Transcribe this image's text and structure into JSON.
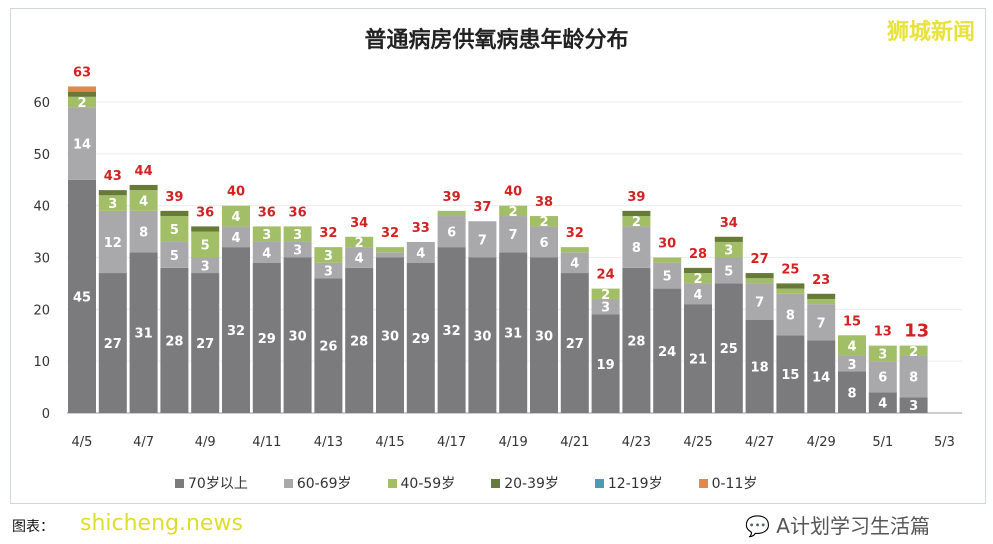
{
  "chart_data": {
    "type": "bar",
    "stacked": true,
    "title": "普通病房供氧病患年龄分布",
    "categories": [
      "4/5",
      "4/6",
      "4/7",
      "4/8",
      "4/9",
      "4/10",
      "4/11",
      "4/12",
      "4/13",
      "4/14",
      "4/15",
      "4/16",
      "4/17",
      "4/18",
      "4/19",
      "4/20",
      "4/21",
      "4/22",
      "4/23",
      "4/24",
      "4/25",
      "4/26",
      "4/27",
      "4/28",
      "4/29",
      "4/30",
      "5/1",
      "5/2"
    ],
    "x_tick_labels": [
      "4/5",
      "4/7",
      "4/9",
      "4/11",
      "4/13",
      "4/15",
      "4/17",
      "4/19",
      "4/21",
      "4/23",
      "4/25",
      "4/27",
      "4/29",
      "5/1",
      "5/3"
    ],
    "totals": [
      63,
      43,
      44,
      39,
      36,
      40,
      36,
      36,
      32,
      34,
      32,
      33,
      39,
      37,
      40,
      38,
      32,
      24,
      39,
      30,
      28,
      34,
      27,
      25,
      23,
      15,
      13,
      13
    ],
    "series": [
      {
        "name": "70岁以上",
        "color": "#7b7a7d",
        "values": [
          45,
          27,
          31,
          28,
          27,
          32,
          29,
          30,
          26,
          28,
          30,
          29,
          32,
          30,
          31,
          30,
          27,
          19,
          28,
          24,
          21,
          25,
          18,
          15,
          14,
          8,
          4,
          3
        ]
      },
      {
        "name": "60-69岁",
        "color": "#a9a9ac",
        "values": [
          14,
          12,
          8,
          5,
          3,
          4,
          4,
          3,
          3,
          4,
          1,
          4,
          6,
          7,
          7,
          6,
          4,
          3,
          8,
          5,
          4,
          5,
          7,
          8,
          7,
          3,
          6,
          8
        ]
      },
      {
        "name": "40-59岁",
        "color": "#a2bf68",
        "values": [
          2,
          3,
          4,
          5,
          5,
          4,
          3,
          3,
          3,
          2,
          1,
          0,
          1,
          0,
          2,
          2,
          1,
          2,
          2,
          1,
          2,
          3,
          1,
          1,
          1,
          4,
          3,
          2
        ]
      },
      {
        "name": "20-39岁",
        "color": "#687a38",
        "values": [
          1,
          1,
          1,
          1,
          1,
          0,
          0,
          0,
          0,
          0,
          0,
          0,
          0,
          0,
          0,
          0,
          0,
          0,
          1,
          0,
          1,
          1,
          1,
          1,
          1,
          0,
          0,
          0
        ]
      },
      {
        "name": "12-19岁",
        "color": "#4b9bb2",
        "values": [
          0,
          0,
          0,
          0,
          0,
          0,
          0,
          0,
          0,
          0,
          0,
          0,
          0,
          0,
          0,
          0,
          0,
          0,
          0,
          0,
          0,
          0,
          0,
          0,
          0,
          0,
          0,
          0
        ]
      },
      {
        "name": "0-11岁",
        "color": "#e0894a",
        "values": [
          1,
          0,
          0,
          0,
          0,
          0,
          0,
          0,
          0,
          0,
          0,
          0,
          0,
          0,
          0,
          0,
          0,
          0,
          0,
          0,
          0,
          0,
          0,
          0,
          0,
          0,
          0,
          0
        ]
      }
    ],
    "ylim": [
      0,
      65
    ],
    "yticks": [
      0,
      10,
      20,
      30,
      40,
      50,
      60
    ],
    "grid": true,
    "legend_position": "bottom",
    "total_label_color": "#d42222"
  },
  "watermarks": {
    "top_right": "狮城新闻",
    "bottom_left": "shicheng.news",
    "wechat": "A计划学习生活篇"
  },
  "source_label": "图表："
}
